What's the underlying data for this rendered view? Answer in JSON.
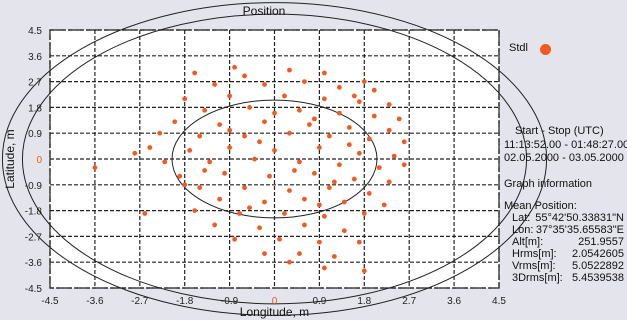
{
  "chart_data": {
    "type": "scatter",
    "title": "Position",
    "xlabel": "Longitude, m",
    "ylabel": "Latitude, m",
    "xlim": [
      -4.5,
      4.5
    ],
    "ylim": [
      -4.5,
      4.5
    ],
    "xticks": [
      "-4.5",
      "-3.6",
      "-2.7",
      "-1.8",
      "-0.9",
      "0",
      "0.9",
      "1.8",
      "2.7",
      "3.6",
      "4.5"
    ],
    "yticks": [
      "4.5",
      "3.6",
      "2.7",
      "1.8",
      "0.9",
      "0",
      "-0.9",
      "-1.8",
      "-2.7",
      "-3.6",
      "-4.5"
    ],
    "grid": true,
    "circle_radii": [
      2.0542605,
      5.0522892,
      5.4539538
    ],
    "series": [
      {
        "name": "Stdl",
        "color": "#f15a22",
        "points": [
          [
            -0.8,
            3.2
          ],
          [
            0.3,
            3.1
          ],
          [
            1.0,
            3.0
          ],
          [
            -1.6,
            3.0
          ],
          [
            1.8,
            2.7
          ],
          [
            -1.2,
            2.6
          ],
          [
            -0.2,
            2.6
          ],
          [
            0.6,
            2.7
          ],
          [
            1.3,
            2.5
          ],
          [
            2.0,
            2.4
          ],
          [
            -1.8,
            2.1
          ],
          [
            -0.9,
            2.2
          ],
          [
            0.2,
            2.2
          ],
          [
            1.0,
            2.1
          ],
          [
            1.7,
            2.0
          ],
          [
            2.3,
            1.9
          ],
          [
            -1.4,
            1.7
          ],
          [
            -0.5,
            1.8
          ],
          [
            0.5,
            1.7
          ],
          [
            1.3,
            1.6
          ],
          [
            2.0,
            1.5
          ],
          [
            2.5,
            1.4
          ],
          [
            -2.0,
            1.3
          ],
          [
            -1.1,
            1.2
          ],
          [
            -0.2,
            1.3
          ],
          [
            0.7,
            1.2
          ],
          [
            1.5,
            1.1
          ],
          [
            2.3,
            1.0
          ],
          [
            -2.3,
            0.9
          ],
          [
            -1.5,
            0.8
          ],
          [
            -0.6,
            0.8
          ],
          [
            0.3,
            0.9
          ],
          [
            1.1,
            0.8
          ],
          [
            1.9,
            0.7
          ],
          [
            2.6,
            0.6
          ],
          [
            -2.5,
            0.4
          ],
          [
            -1.7,
            0.3
          ],
          [
            -0.9,
            0.4
          ],
          [
            0.0,
            0.3
          ],
          [
            0.9,
            0.4
          ],
          [
            1.7,
            0.2
          ],
          [
            2.4,
            0.1
          ],
          [
            -2.2,
            -0.1
          ],
          [
            -1.3,
            -0.1
          ],
          [
            -0.4,
            0.0
          ],
          [
            0.5,
            -0.1
          ],
          [
            1.3,
            -0.2
          ],
          [
            2.1,
            -0.3
          ],
          [
            -1.9,
            -0.6
          ],
          [
            -1.0,
            -0.5
          ],
          [
            -0.1,
            -0.6
          ],
          [
            0.8,
            -0.5
          ],
          [
            1.6,
            -0.7
          ],
          [
            2.3,
            -0.8
          ],
          [
            -1.5,
            -1.0
          ],
          [
            -0.6,
            -1.0
          ],
          [
            0.3,
            -1.1
          ],
          [
            1.1,
            -1.0
          ],
          [
            1.9,
            -1.2
          ],
          [
            -1.1,
            -1.4
          ],
          [
            -0.2,
            -1.5
          ],
          [
            0.6,
            -1.4
          ],
          [
            1.4,
            -1.5
          ],
          [
            2.2,
            -1.6
          ],
          [
            -2.6,
            -1.9
          ],
          [
            -1.6,
            -1.8
          ],
          [
            -0.7,
            -1.9
          ],
          [
            0.2,
            -1.9
          ],
          [
            1.0,
            -2.0
          ],
          [
            1.8,
            -1.9
          ],
          [
            -1.2,
            -2.3
          ],
          [
            -0.3,
            -2.4
          ],
          [
            0.6,
            -2.3
          ],
          [
            1.4,
            -2.5
          ],
          [
            -0.8,
            -2.8
          ],
          [
            0.1,
            -2.8
          ],
          [
            0.9,
            -2.9
          ],
          [
            1.7,
            -2.9
          ],
          [
            -0.2,
            -3.3
          ],
          [
            0.5,
            -3.3
          ],
          [
            1.2,
            -3.4
          ],
          [
            0.3,
            -3.6
          ],
          [
            1.0,
            -3.8
          ],
          [
            1.8,
            -3.9
          ],
          [
            -3.6,
            -0.3
          ],
          [
            -0.6,
            2.9
          ],
          [
            1.6,
            2.2
          ],
          [
            -2.8,
            0.2
          ],
          [
            2.6,
            -0.2
          ],
          [
            -1.8,
            -0.9
          ],
          [
            0.0,
            1.6
          ],
          [
            0.4,
            -0.4
          ],
          [
            -0.3,
            0.6
          ],
          [
            1.2,
            -0.8
          ],
          [
            -0.9,
            1.0
          ],
          [
            0.8,
            1.4
          ],
          [
            -1.4,
            -0.4
          ],
          [
            1.5,
            0.5
          ],
          [
            -0.5,
            -1.7
          ],
          [
            0.9,
            -1.6
          ]
        ]
      }
    ]
  },
  "info": {
    "start_stop_header": "Start - Stop (UTC)",
    "time_range": "11:13:52.00 - 01:48:27.00",
    "date_range": "02.05.2000 - 03.05.2000",
    "graph_info_header": "Graph information",
    "mean_position_label": "Mean Position:",
    "rows": [
      {
        "key": "Lat:",
        "value": "55°42'50.33831\"N"
      },
      {
        "key": "Lon:",
        "value": "37°35'35.65583\"E"
      },
      {
        "key": "Alt[m]:",
        "value": "251.9557"
      },
      {
        "key": "Hrms[m]:",
        "value": "2.0542605"
      },
      {
        "key": "Vrms[m]:",
        "value": "5.0522892"
      },
      {
        "key": "3Drms[m]:",
        "value": "5.4539538"
      }
    ]
  }
}
